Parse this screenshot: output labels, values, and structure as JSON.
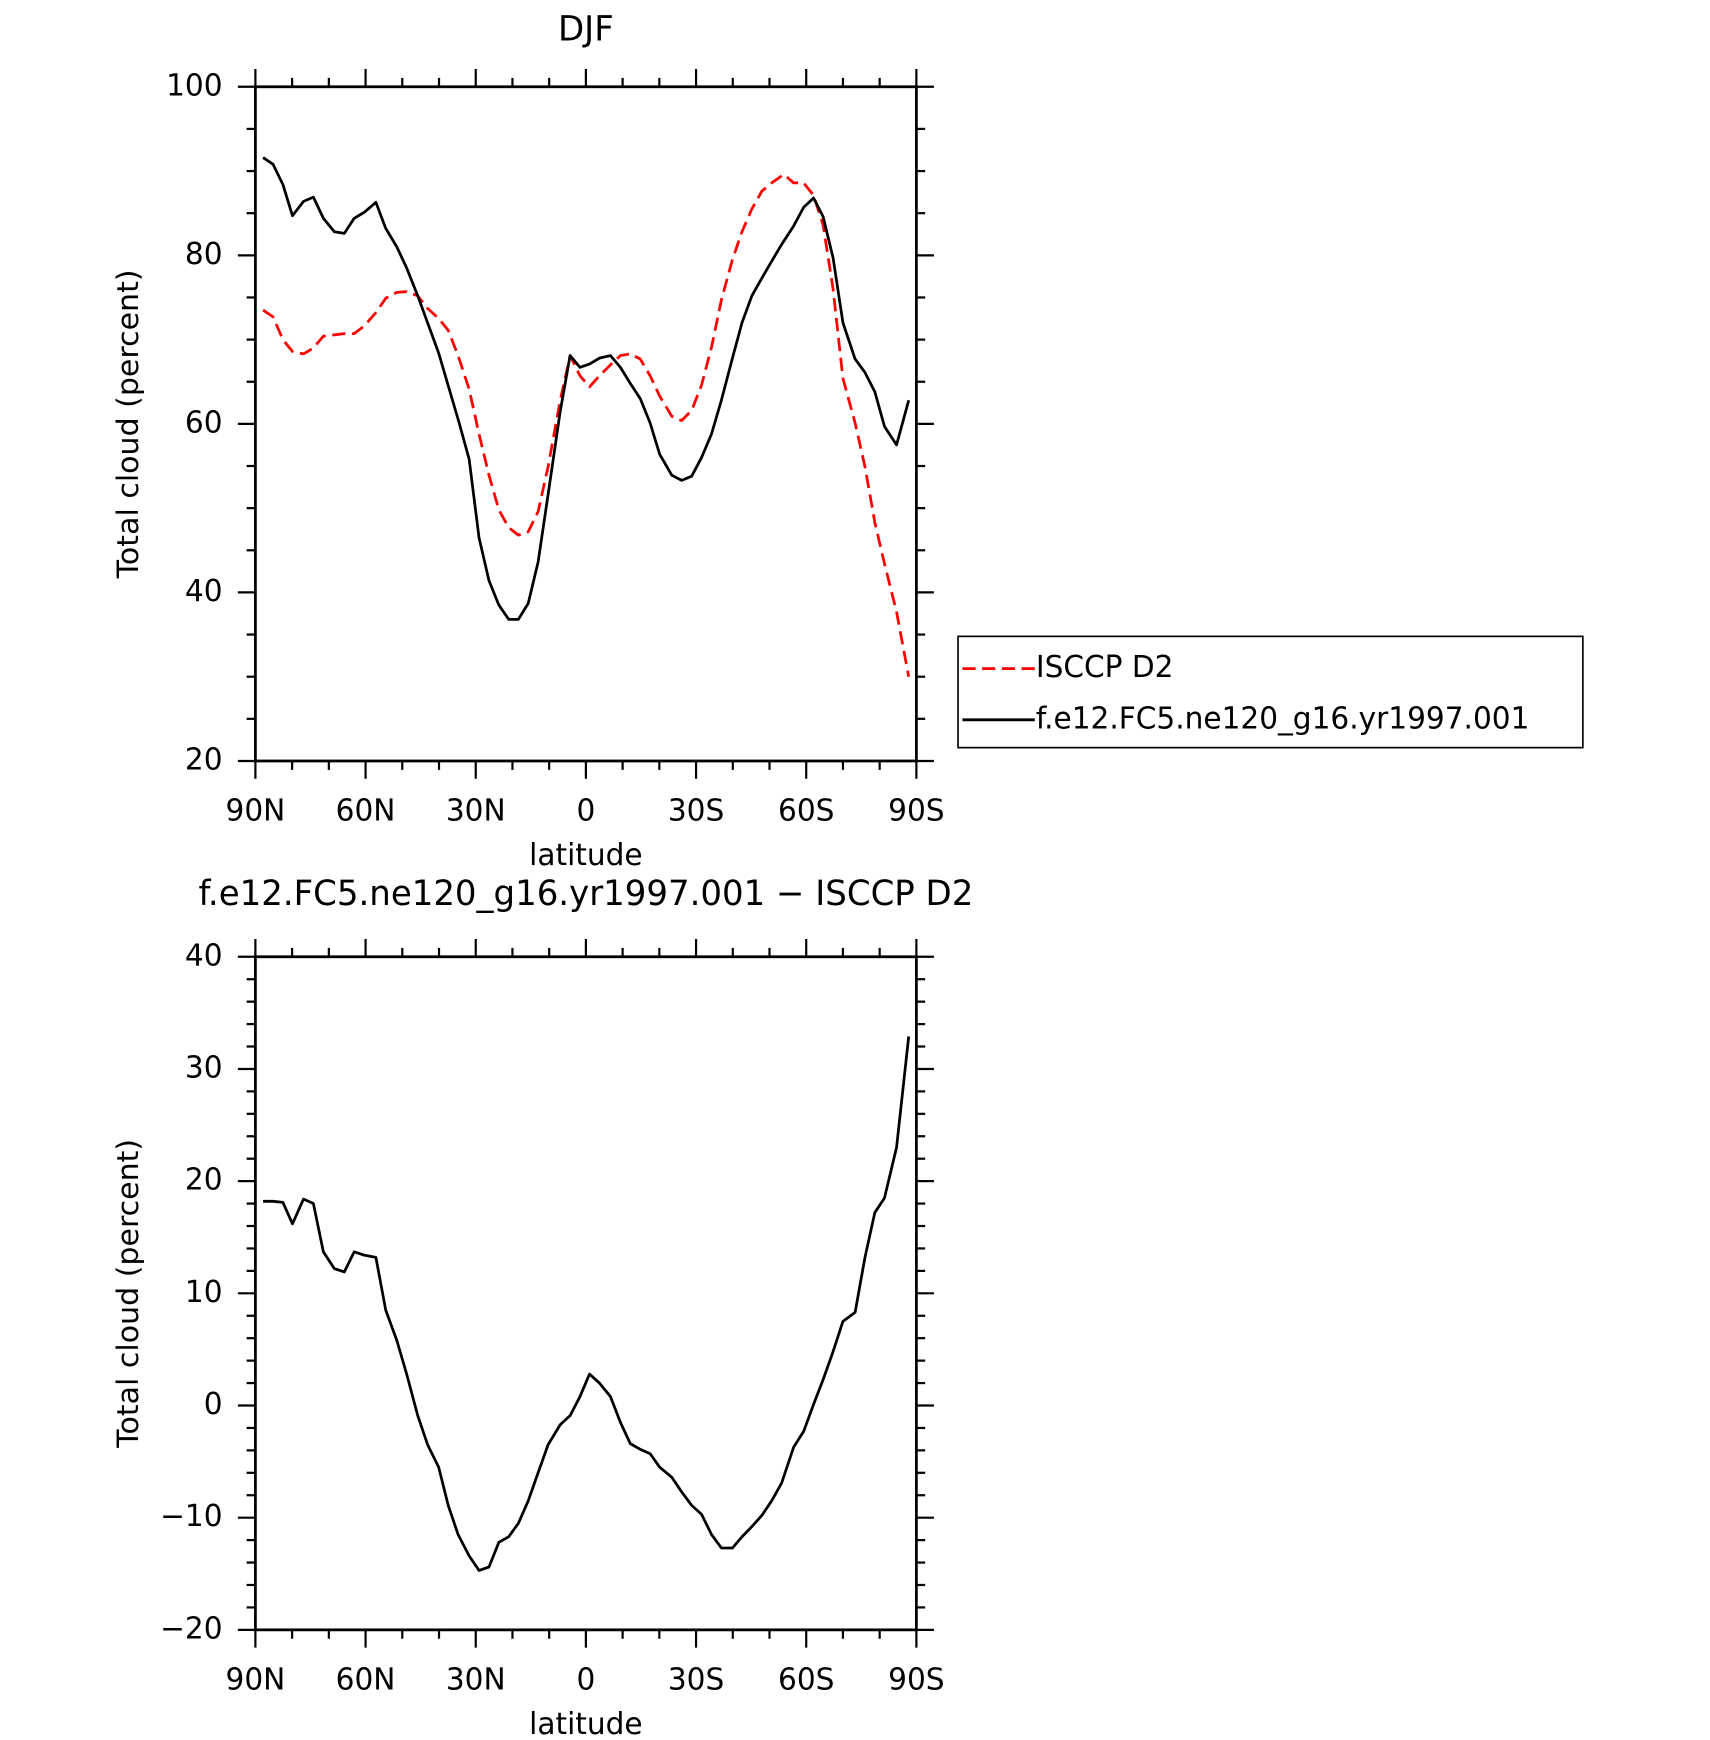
{
  "chart_data": [
    {
      "type": "line",
      "title": "DJF",
      "xlabel": "latitude",
      "ylabel": "Total cloud (percent)",
      "xlim": [
        90,
        -90
      ],
      "xticks": [
        {
          "value": 90,
          "label": "90N"
        },
        {
          "value": 60,
          "label": "60N"
        },
        {
          "value": 30,
          "label": "30N"
        },
        0,
        {
          "value": -30,
          "label": "30S"
        },
        {
          "value": -60,
          "label": "60S"
        },
        {
          "value": -90,
          "label": "90S"
        }
      ],
      "ylim": [
        20,
        100
      ],
      "yticks": [
        20,
        40,
        60,
        80,
        100
      ],
      "legend": "right",
      "series": [
        {
          "name": "ISCCP D2",
          "color": "#ff0000",
          "dash": true,
          "x": [
            87.9,
            85.2,
            82.5,
            79.9,
            76.9,
            74.2,
            71.5,
            65.8,
            63.1,
            60.4,
            57.2,
            54.5,
            51.5,
            48.8,
            45.8,
            43.1,
            40.1,
            37.5,
            34.8,
            31.8,
            29.1,
            26.4,
            23.7,
            21.0,
            18.4,
            15.7,
            13.0,
            10.3,
            7.0,
            4.3,
            1.6,
            -1.0,
            -3.7,
            -6.7,
            -9.4,
            -12.1,
            -14.8,
            -17.5,
            -20.1,
            -23.4,
            -26.1,
            -28.8,
            -31.5,
            -34.2,
            -36.9,
            -39.9,
            -42.5,
            -45.2,
            -47.9,
            -50.6,
            -53.9,
            -56.6,
            -59.3,
            -62.0,
            -64.6,
            -67.3,
            -70.0,
            -73.3,
            -76.0,
            -78.7,
            -81.3,
            -84.6,
            -87.9
          ],
          "values": [
            73.5,
            72.7,
            70.0,
            68.6,
            68.3,
            69.0,
            70.4,
            70.7,
            70.7,
            71.6,
            73.2,
            74.9,
            75.6,
            75.7,
            75.2,
            73.7,
            72.5,
            71.1,
            68.1,
            64.1,
            58.8,
            53.9,
            49.8,
            47.7,
            46.8,
            47.2,
            49.6,
            54.9,
            62.8,
            68.1,
            65.7,
            64.4,
            65.7,
            67.0,
            68.1,
            68.3,
            67.7,
            65.7,
            63.3,
            60.9,
            60.4,
            61.6,
            64.6,
            69.1,
            74.7,
            79.5,
            82.8,
            85.5,
            87.6,
            88.6,
            89.6,
            88.6,
            88.6,
            87.1,
            83.6,
            76.0,
            65.4,
            60.1,
            54.9,
            48.3,
            43.4,
            37.7,
            30.0
          ]
        },
        {
          "name": "f.e12.FC5.ne120_g16.yr1997.001",
          "color": "#000000",
          "x": [
            87.9,
            85.2,
            82.5,
            79.9,
            76.9,
            74.2,
            71.5,
            68.5,
            65.8,
            63.1,
            60.4,
            57.2,
            54.5,
            51.5,
            48.8,
            45.8,
            40.1,
            34.5,
            31.8,
            29.1,
            26.4,
            23.7,
            21.0,
            18.4,
            15.7,
            13.0,
            10.3,
            7.0,
            4.3,
            1.6,
            -1.0,
            -3.7,
            -6.7,
            -9.4,
            -12.1,
            -14.8,
            -17.5,
            -20.1,
            -23.4,
            -26.1,
            -28.8,
            -31.5,
            -34.2,
            -36.9,
            -39.9,
            -42.5,
            -45.2,
            -47.9,
            -50.6,
            -53.3,
            -56.6,
            -59.3,
            -62.0,
            -64.6,
            -67.3,
            -70.0,
            -73.3,
            -76.0,
            -78.7,
            -81.3,
            -84.6,
            -87.9
          ],
          "values": [
            91.6,
            90.8,
            88.4,
            84.7,
            86.4,
            86.9,
            84.4,
            82.8,
            82.6,
            84.4,
            85.1,
            86.3,
            83.2,
            81.0,
            78.5,
            75.2,
            68.4,
            60.1,
            55.8,
            46.5,
            41.4,
            38.5,
            36.8,
            36.8,
            38.7,
            43.6,
            51.6,
            61.5,
            68.1,
            66.7,
            67.1,
            67.8,
            68.1,
            66.7,
            64.8,
            63.0,
            60.1,
            56.4,
            53.9,
            53.3,
            53.8,
            56.0,
            58.8,
            62.8,
            67.8,
            72.0,
            75.2,
            77.3,
            79.3,
            81.3,
            83.5,
            85.7,
            86.8,
            84.6,
            79.7,
            72.0,
            67.7,
            66.1,
            63.8,
            59.7,
            57.5,
            62.8
          ]
        }
      ]
    },
    {
      "type": "line",
      "title": "f.e12.FC5.ne120_g16.yr1997.001 − ISCCP D2",
      "xlabel": "latitude",
      "ylabel": "Total cloud (percent)",
      "xlim": [
        90,
        -90
      ],
      "xticks": [
        {
          "value": 90,
          "label": "90N"
        },
        {
          "value": 60,
          "label": "60N"
        },
        {
          "value": 30,
          "label": "30N"
        },
        0,
        {
          "value": -30,
          "label": "30S"
        },
        {
          "value": -60,
          "label": "60S"
        },
        {
          "value": -90,
          "label": "90S"
        }
      ],
      "ylim": [
        -20,
        40
      ],
      "yticks": [
        {
          "value": -20,
          "label": "−20"
        },
        {
          "value": -10,
          "label": "−10"
        },
        0,
        10,
        20,
        30,
        40
      ],
      "series": [
        {
          "color": "#000000",
          "x": [
            87.9,
            85.2,
            82.5,
            79.9,
            76.9,
            74.2,
            71.5,
            68.5,
            65.8,
            63.1,
            60.4,
            57.2,
            54.5,
            51.5,
            48.8,
            45.8,
            43.1,
            40.1,
            37.5,
            34.8,
            31.8,
            29.1,
            26.4,
            23.7,
            21.0,
            18.4,
            15.7,
            13.0,
            10.3,
            7.0,
            4.3,
            1.6,
            -1.0,
            -3.7,
            -6.7,
            -9.4,
            -12.1,
            -14.8,
            -17.5,
            -20.1,
            -23.4,
            -26.1,
            -28.8,
            -31.5,
            -34.2,
            -36.9,
            -39.9,
            -42.5,
            -45.2,
            -47.9,
            -50.6,
            -53.3,
            -56.6,
            -59.3,
            -62.0,
            -64.6,
            -67.3,
            -70.0,
            -73.3,
            -76.0,
            -78.7,
            -81.3,
            -84.6,
            -87.9
          ],
          "values": [
            18.2,
            18.2,
            18.1,
            16.2,
            18.4,
            18.0,
            13.7,
            12.2,
            11.9,
            13.7,
            13.4,
            13.2,
            8.5,
            5.8,
            2.8,
            -0.9,
            -3.5,
            -5.5,
            -8.9,
            -11.5,
            -13.4,
            -14.7,
            -14.4,
            -12.2,
            -11.7,
            -10.5,
            -8.5,
            -6.0,
            -3.5,
            -1.7,
            -0.9,
            0.8,
            2.8,
            2.0,
            0.8,
            -1.5,
            -3.4,
            -3.9,
            -4.3,
            -5.5,
            -6.4,
            -7.7,
            -8.9,
            -9.7,
            -11.5,
            -12.7,
            -12.7,
            -11.7,
            -10.8,
            -9.8,
            -8.5,
            -6.9,
            -3.7,
            -2.3,
            0.1,
            2.3,
            4.8,
            7.5,
            8.3,
            13.2,
            17.2,
            18.5,
            23.0,
            32.9
          ]
        }
      ]
    }
  ]
}
